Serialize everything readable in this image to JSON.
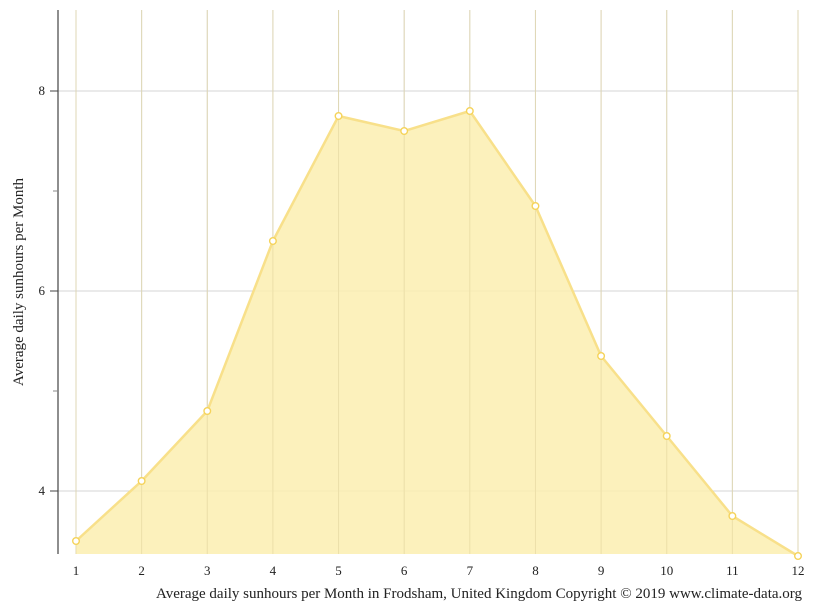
{
  "chart_data": {
    "type": "area",
    "title": "Average daily sunhours per Month in Frodsham, United Kingdom Copyright © 2019 www.climate-data.org",
    "xlabel": "",
    "ylabel": "Average daily sunhours per Month",
    "categories": [
      "1",
      "2",
      "3",
      "4",
      "5",
      "6",
      "7",
      "8",
      "9",
      "10",
      "11",
      "12"
    ],
    "series": [
      {
        "name": "Average daily sunhours",
        "values": [
          3.5,
          4.1,
          4.8,
          6.5,
          7.75,
          7.6,
          7.8,
          6.85,
          5.35,
          4.55,
          3.75,
          3.35
        ]
      }
    ],
    "ylim": [
      3.35,
      8.8
    ],
    "yticks": [
      4,
      6,
      8
    ],
    "yminor_ticks": [
      5,
      7
    ],
    "grid": true,
    "legend": "none",
    "colors": {
      "fill": "#FBEEB0",
      "line": "#F8E08A",
      "marker_stroke": "#F5D35A",
      "grid": "#d4d4d4",
      "axis": "#444444"
    }
  },
  "labels": {
    "y_axis_title": "Average daily sunhours per Month",
    "caption": "Average daily sunhours per Month in Frodsham, United Kingdom Copyright © 2019 www.climate-data.org",
    "y_ticks": [
      "4",
      "6",
      "8"
    ],
    "x_ticks": [
      "1",
      "2",
      "3",
      "4",
      "5",
      "6",
      "7",
      "8",
      "9",
      "10",
      "11",
      "12"
    ]
  }
}
